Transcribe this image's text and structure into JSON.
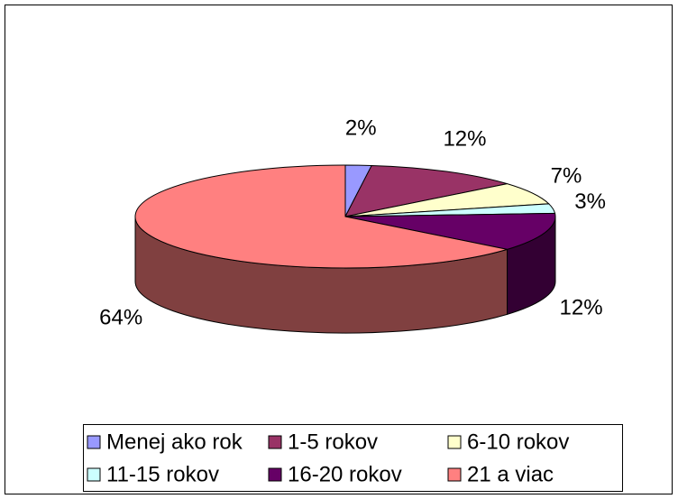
{
  "chart_data": {
    "type": "pie",
    "categories": [
      "Menej ako rok",
      "1-5 rokov",
      "6-10 rokov",
      "11-15 rokov",
      "16-20 rokov",
      "21 a viac"
    ],
    "values": [
      2,
      12,
      7,
      3,
      12,
      64
    ],
    "value_labels": [
      "2%",
      "12%",
      "7%",
      "3%",
      "12%",
      "64%"
    ],
    "colors": [
      "#9999ff",
      "#993366",
      "#ffffcc",
      "#ccffff",
      "#660066",
      "#ff8080"
    ],
    "side_colors": [
      "#4d4d80",
      "#4d1a33",
      "#808066",
      "#668080",
      "#330033",
      "#804040"
    ],
    "legend": "bottom"
  }
}
